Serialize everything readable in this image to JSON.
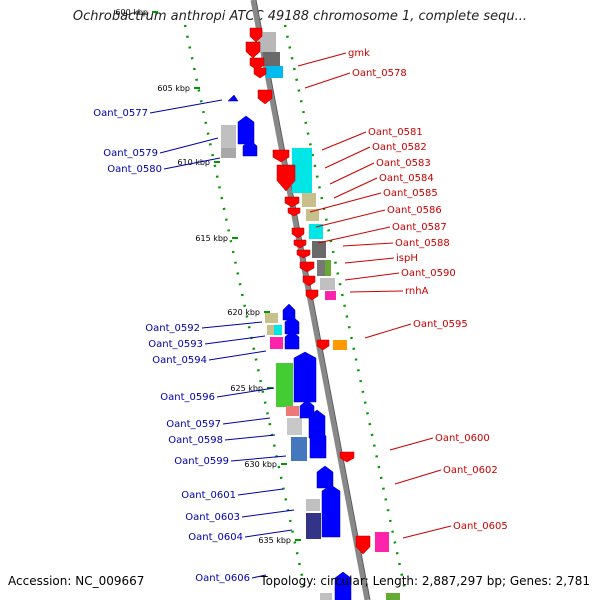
{
  "title": "Ochrobactrum anthropi ATCC 49188 chromosome 1, complete sequ...",
  "footer": {
    "accession": "Accession: NC_009667",
    "topology": "Topology: circular; Length: 2,887,297 bp; Genes: 2,781"
  },
  "colors": {
    "red_label": "#cc0000",
    "blue_label": "#0000aa",
    "backbone": "#888888",
    "dots": "#009900",
    "forward_gene": "#0000ff",
    "reverse_gene": "#ff0000"
  },
  "scale_ticks": [
    "600 kbp",
    "605 kbp",
    "610 kbp",
    "615 kbp",
    "620 kbp",
    "625 kbp",
    "630 kbp",
    "635 kbp"
  ],
  "right_labels": [
    "gmk",
    "Oant_0578",
    "Oant_0581",
    "Oant_0582",
    "Oant_0583",
    "Oant_0584",
    "Oant_0585",
    "Oant_0586",
    "Oant_0587",
    "Oant_0588",
    "ispH",
    "Oant_0590",
    "rnhA",
    "Oant_0595",
    "Oant_0600",
    "Oant_0602",
    "Oant_0605"
  ],
  "left_labels": [
    "Oant_0577",
    "Oant_0579",
    "Oant_0580",
    "Oant_0592",
    "Oant_0593",
    "Oant_0594",
    "Oant_0596",
    "Oant_0597",
    "Oant_0598",
    "Oant_0599",
    "Oant_0601",
    "Oant_0603",
    "Oant_0604",
    "Oant_0606"
  ]
}
